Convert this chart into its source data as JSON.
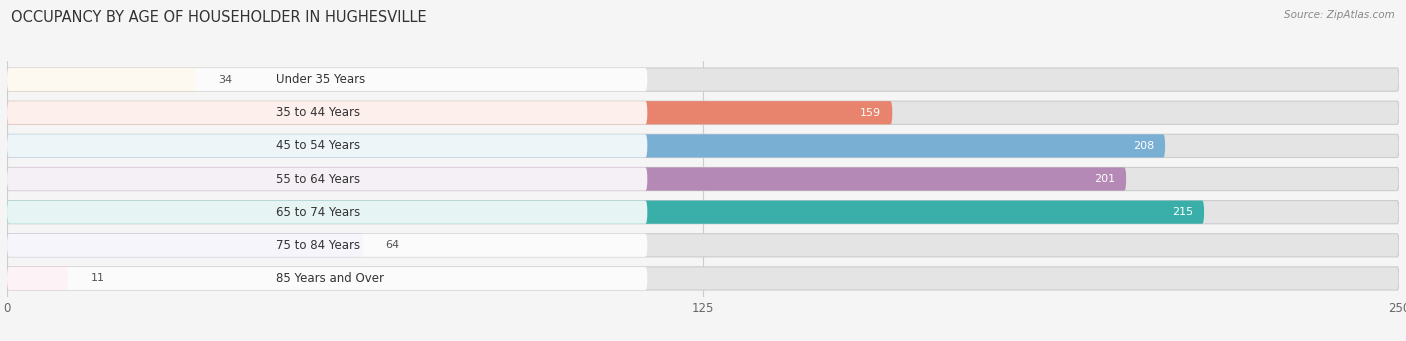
{
  "title": "OCCUPANCY BY AGE OF HOUSEHOLDER IN HUGHESVILLE",
  "source": "Source: ZipAtlas.com",
  "categories": [
    "Under 35 Years",
    "35 to 44 Years",
    "45 to 54 Years",
    "55 to 64 Years",
    "65 to 74 Years",
    "75 to 84 Years",
    "85 Years and Over"
  ],
  "values": [
    34,
    159,
    208,
    201,
    215,
    64,
    11
  ],
  "bar_colors": [
    "#f5c98a",
    "#e8846e",
    "#7aafd4",
    "#b589b5",
    "#3aafaa",
    "#b0b0e0",
    "#f5a0b8"
  ],
  "xlim_max": 250,
  "xticks": [
    0,
    125,
    250
  ],
  "bar_height": 0.7,
  "fig_bg": "#f5f5f5",
  "bar_bg_color": "#e4e4e4",
  "title_fontsize": 10.5,
  "label_fontsize": 8.5,
  "value_fontsize": 8.0,
  "source_fontsize": 7.5
}
